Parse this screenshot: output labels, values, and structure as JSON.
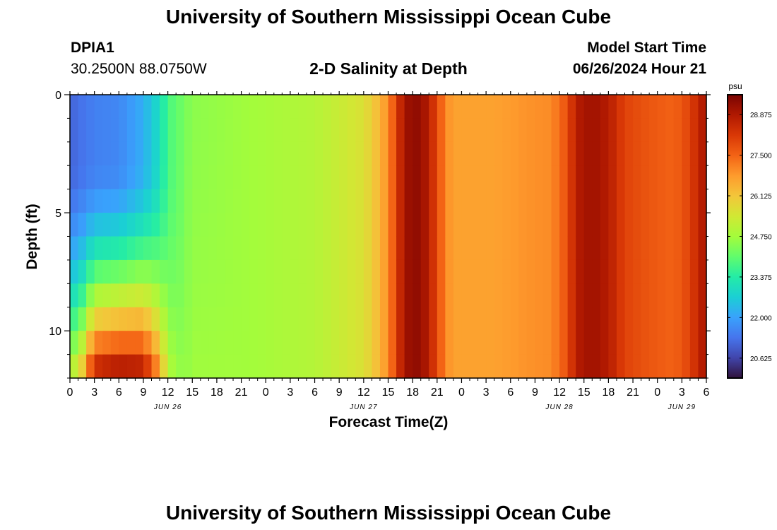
{
  "page": {
    "title": "University of Southern Mississippi Ocean Cube",
    "footer_title": "University of Southern Mississippi Ocean Cube"
  },
  "header": {
    "station": "DPIA1",
    "coords": "30.2500N  88.0750W",
    "plot_title": "2-D Salinity at Depth",
    "model_label": "Model Start Time",
    "model_time": "06/26/2024 Hour 21"
  },
  "chart_data": {
    "type": "heatmap",
    "title": "2-D Salinity at Depth",
    "xlabel": "Forecast Time(Z)",
    "ylabel": "Depth (ft)",
    "x_range_hours": [
      0,
      78
    ],
    "y_range_ft": [
      0,
      12
    ],
    "x_tick_labels": [
      "0",
      "3",
      "6",
      "9",
      "12",
      "15",
      "18",
      "21",
      "0",
      "3",
      "6",
      "9",
      "12",
      "15",
      "18",
      "21",
      "0",
      "3",
      "6",
      "9",
      "12",
      "15",
      "18",
      "21",
      "0",
      "3",
      "6"
    ],
    "y_ticks": [
      0,
      5,
      10
    ],
    "y_tick_labels": [
      "0",
      "5",
      "10"
    ],
    "date_labels": [
      {
        "label": "JUN 26",
        "hour": 12
      },
      {
        "label": "JUN 27",
        "hour": 36
      },
      {
        "label": "JUN 28",
        "hour": 60
      },
      {
        "label": "JUN 29",
        "hour": 75
      }
    ],
    "colorbar": {
      "unit": "psu",
      "min": 19.95,
      "max": 29.55,
      "tick_values": [
        20.625,
        22.0,
        23.375,
        24.75,
        26.125,
        27.5,
        28.875
      ],
      "tick_labels": [
        "20.625",
        "22.000",
        "23.375",
        "24.750",
        "26.125",
        "27.500",
        "28.875"
      ],
      "colors": [
        "#30123b",
        "#4145ab",
        "#4675ed",
        "#39a2fc",
        "#1bcfd4",
        "#24eca6",
        "#61fc6c",
        "#a4fc3b",
        "#d1e834",
        "#f3c63a",
        "#fe9b2d",
        "#f36315",
        "#d93806",
        "#b11901",
        "#7a0402"
      ]
    },
    "depth_levels_ft": [
      0,
      1,
      2,
      3,
      4,
      5,
      6,
      7,
      8,
      9,
      10,
      11,
      12
    ],
    "surface_salinity_by_hour": [
      {
        "hour": 0,
        "psu": 21.1
      },
      {
        "hour": 3,
        "psu": 21.5
      },
      {
        "hour": 6,
        "psu": 21.6
      },
      {
        "hour": 9,
        "psu": 22.2
      },
      {
        "hour": 11,
        "psu": 23.0
      },
      {
        "hour": 12,
        "psu": 23.8
      },
      {
        "hour": 15,
        "psu": 24.5
      },
      {
        "hour": 18,
        "psu": 24.6
      },
      {
        "hour": 21,
        "psu": 24.7
      },
      {
        "hour": 24,
        "psu": 24.8
      },
      {
        "hour": 27,
        "psu": 24.9
      },
      {
        "hour": 30,
        "psu": 25.0
      },
      {
        "hour": 33,
        "psu": 25.3
      },
      {
        "hour": 36,
        "psu": 25.6
      },
      {
        "hour": 37,
        "psu": 26.0
      },
      {
        "hour": 38,
        "psu": 26.4
      },
      {
        "hour": 39,
        "psu": 27.0
      },
      {
        "hour": 40,
        "psu": 28.0
      },
      {
        "hour": 41,
        "psu": 29.1
      },
      {
        "hour": 43,
        "psu": 29.3
      },
      {
        "hour": 45,
        "psu": 28.0
      },
      {
        "hour": 46,
        "psu": 27.0
      },
      {
        "hour": 47,
        "psu": 26.7
      },
      {
        "hour": 52,
        "psu": 26.7
      },
      {
        "hour": 56,
        "psu": 26.9
      },
      {
        "hour": 59,
        "psu": 27.0
      },
      {
        "hour": 61,
        "psu": 27.8
      },
      {
        "hour": 62,
        "psu": 28.8
      },
      {
        "hour": 64,
        "psu": 29.1
      },
      {
        "hour": 66,
        "psu": 28.8
      },
      {
        "hour": 68,
        "psu": 28.0
      },
      {
        "hour": 71,
        "psu": 27.7
      },
      {
        "hour": 74,
        "psu": 27.5
      },
      {
        "hour": 76,
        "psu": 28.0
      },
      {
        "hour": 77,
        "psu": 28.6
      },
      {
        "hour": 78,
        "psu": 29.0
      }
    ],
    "bottom_intrusion": [
      {
        "hour": 1,
        "psu_at_12ft": 25.5
      },
      {
        "hour": 3,
        "psu_at_12ft": 29.0
      },
      {
        "hour": 6,
        "psu_at_12ft": 29.4
      },
      {
        "hour": 9,
        "psu_at_12ft": 29.2
      },
      {
        "hour": 11,
        "psu_at_12ft": 27.0
      },
      {
        "hour": 12,
        "psu_at_12ft": 25.0
      },
      {
        "hour": 14,
        "psu_at_12ft": 24.5
      }
    ]
  }
}
